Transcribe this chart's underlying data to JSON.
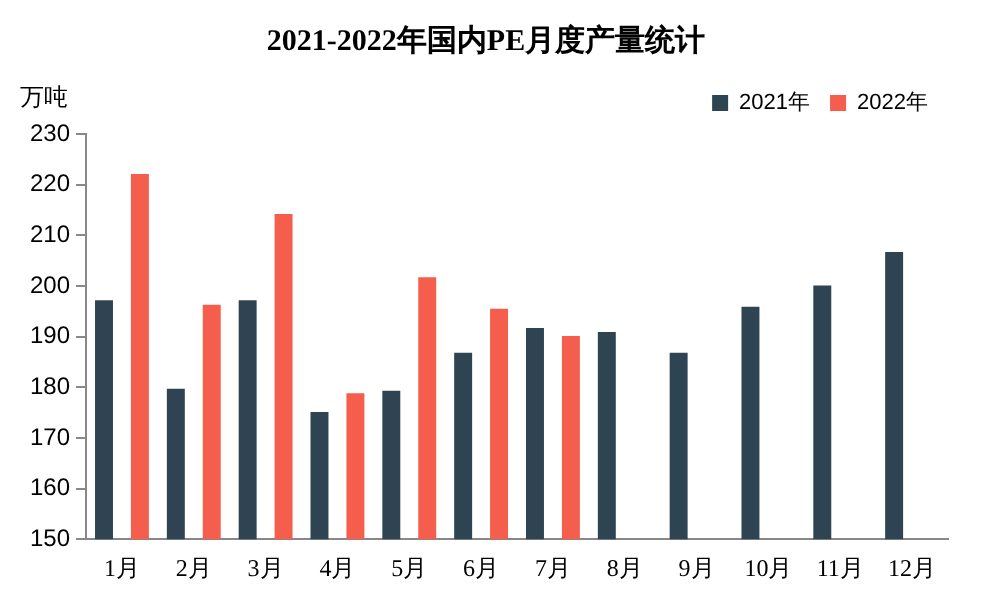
{
  "chart_data": {
    "type": "bar",
    "title": "2021-2022年国内PE月度产量统计",
    "ylabel": "万吨",
    "categories": [
      "1月",
      "2月",
      "3月",
      "4月",
      "5月",
      "6月",
      "7月",
      "8月",
      "9月",
      "10月",
      "11月",
      "12月"
    ],
    "series": [
      {
        "name": "2021年",
        "color": "#2e4453",
        "values": [
          197.2,
          179.7,
          197.2,
          175.1,
          179.3,
          186.8,
          191.7,
          190.9,
          186.8,
          195.9,
          200.1,
          206.7
        ]
      },
      {
        "name": "2022年",
        "color": "#f55d4c",
        "values": [
          222.1,
          196.3,
          214.2,
          178.8,
          201.7,
          195.5,
          190.1,
          null,
          null,
          null,
          null,
          null
        ]
      }
    ],
    "ylim": [
      150,
      230
    ],
    "yticks": [
      150,
      160,
      170,
      180,
      190,
      200,
      210,
      220,
      230
    ],
    "grid": false,
    "legend": "top right"
  }
}
